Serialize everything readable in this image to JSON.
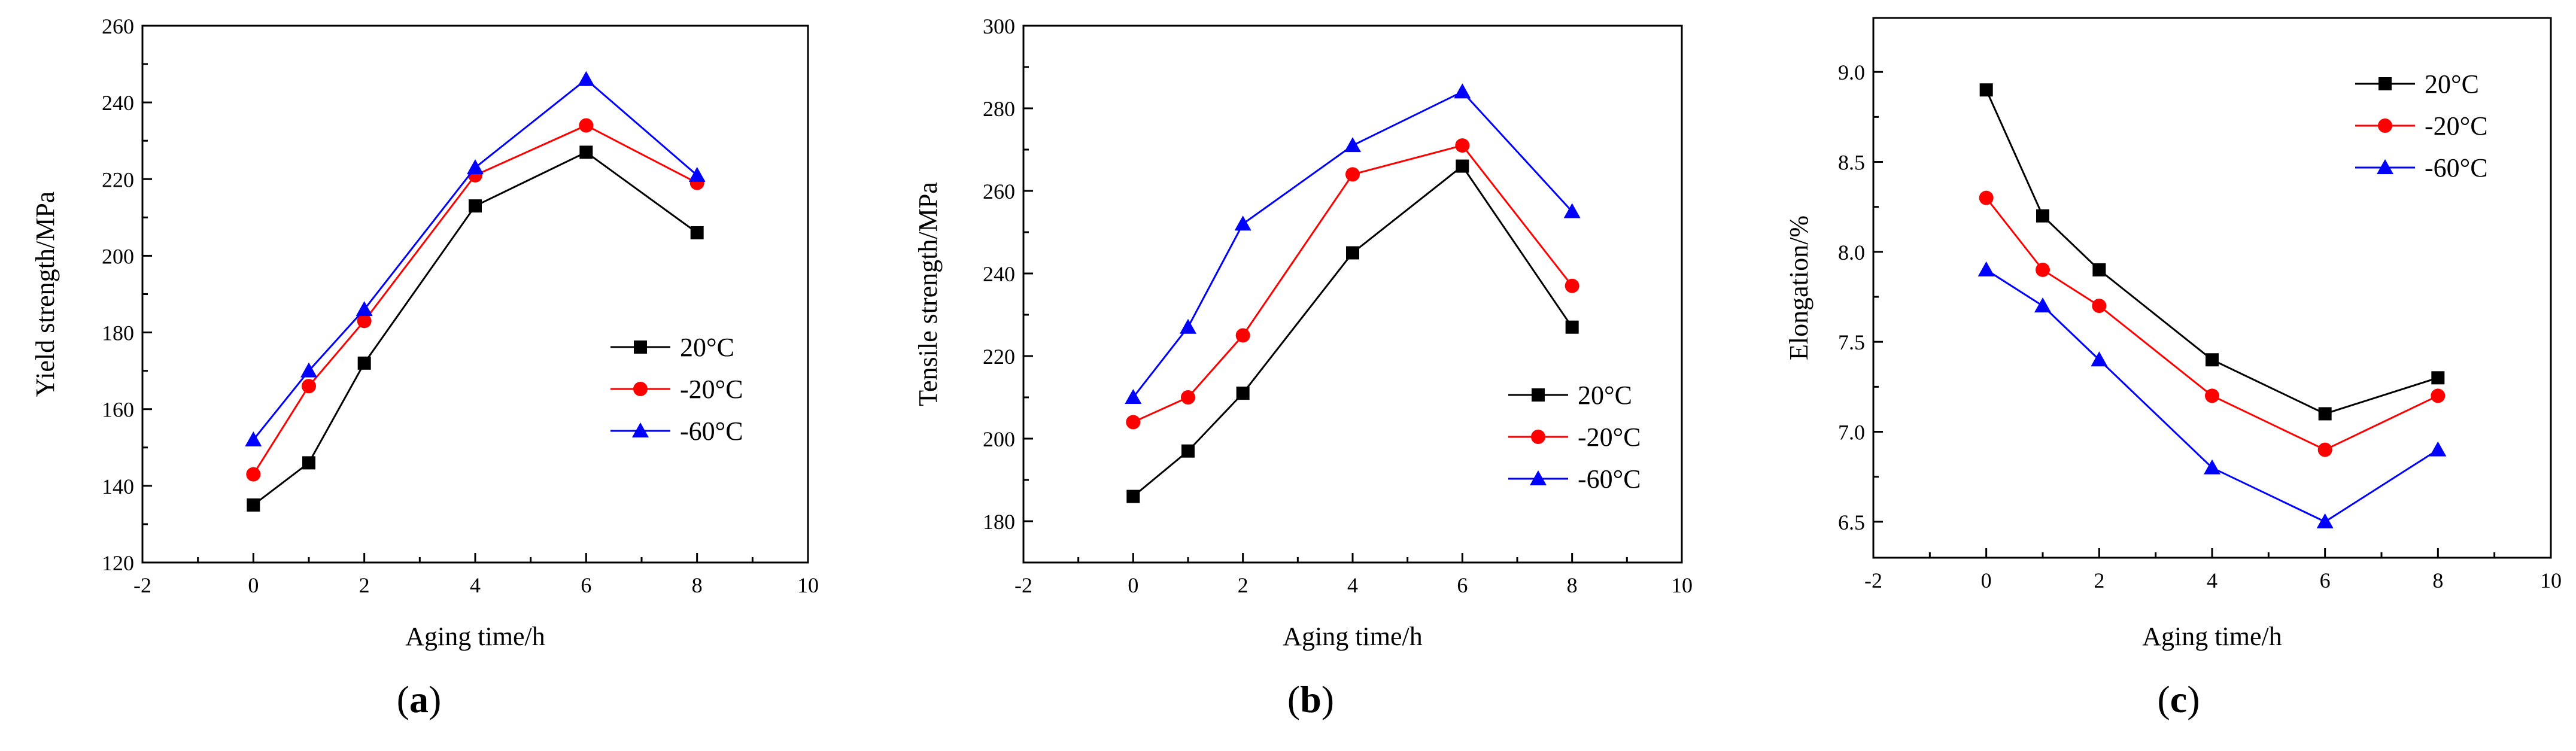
{
  "chart_data": [
    {
      "type": "line",
      "panel_label": "(a)",
      "panel_letter": "a",
      "xlabel": "Aging time/h",
      "ylabel": "Yield strength/MPa",
      "xlim": [
        -2,
        10
      ],
      "ylim": [
        120,
        260
      ],
      "xticks": [
        -2,
        0,
        2,
        4,
        6,
        8,
        10
      ],
      "yticks": [
        120,
        140,
        160,
        180,
        200,
        220,
        240,
        260
      ],
      "legend_position": "center-right",
      "x": [
        0,
        1,
        2,
        4,
        6,
        8
      ],
      "series": [
        {
          "name": "20°C",
          "color": "#000000",
          "marker": "square",
          "values": [
            135,
            146,
            172,
            213,
            227,
            206
          ]
        },
        {
          "name": "-20°C",
          "color": "#ff0000",
          "marker": "circle",
          "values": [
            143,
            166,
            183,
            221,
            234,
            219
          ]
        },
        {
          "name": "-60°C",
          "color": "#0000ff",
          "marker": "triangle",
          "values": [
            152,
            170,
            186,
            223,
            246,
            221
          ]
        }
      ]
    },
    {
      "type": "line",
      "panel_label": "(b)",
      "panel_letter": "b",
      "xlabel": "Aging time/h",
      "ylabel": "Tensile strength/MPa",
      "xlim": [
        -2,
        10
      ],
      "ylim": [
        170,
        300
      ],
      "xticks": [
        -2,
        0,
        2,
        4,
        6,
        8,
        10
      ],
      "yticks": [
        180,
        200,
        220,
        240,
        260,
        280,
        300
      ],
      "legend_position": "lower-right",
      "x": [
        0,
        1,
        2,
        4,
        6,
        8
      ],
      "series": [
        {
          "name": "20°C",
          "color": "#000000",
          "marker": "square",
          "values": [
            186,
            197,
            211,
            245,
            266,
            227
          ]
        },
        {
          "name": "-20°C",
          "color": "#ff0000",
          "marker": "circle",
          "values": [
            204,
            210,
            225,
            264,
            271,
            237
          ]
        },
        {
          "name": "-60°C",
          "color": "#0000ff",
          "marker": "triangle",
          "values": [
            210,
            227,
            252,
            271,
            284,
            255
          ]
        }
      ]
    },
    {
      "type": "line",
      "panel_label": "(c)",
      "panel_letter": "c",
      "xlabel": "Aging time/h",
      "ylabel": "Elongation/%",
      "xlim": [
        -2,
        10
      ],
      "ylim": [
        6.3,
        9.3
      ],
      "xticks": [
        -2,
        0,
        2,
        4,
        6,
        8,
        10
      ],
      "yticks": [
        6.5,
        7.0,
        7.5,
        8.0,
        8.5,
        9.0
      ],
      "ytick_decimals": 1,
      "legend_position": "top-right",
      "x": [
        0,
        1,
        2,
        4,
        6,
        8
      ],
      "series": [
        {
          "name": "20°C",
          "color": "#000000",
          "marker": "square",
          "values": [
            8.9,
            8.2,
            7.9,
            7.4,
            7.1,
            7.3
          ]
        },
        {
          "name": "-20°C",
          "color": "#ff0000",
          "marker": "circle",
          "values": [
            8.3,
            7.9,
            7.7,
            7.2,
            6.9,
            7.2
          ]
        },
        {
          "name": "-60°C",
          "color": "#0000ff",
          "marker": "triangle",
          "values": [
            7.9,
            7.7,
            7.4,
            6.8,
            6.5,
            6.9
          ]
        }
      ]
    }
  ]
}
